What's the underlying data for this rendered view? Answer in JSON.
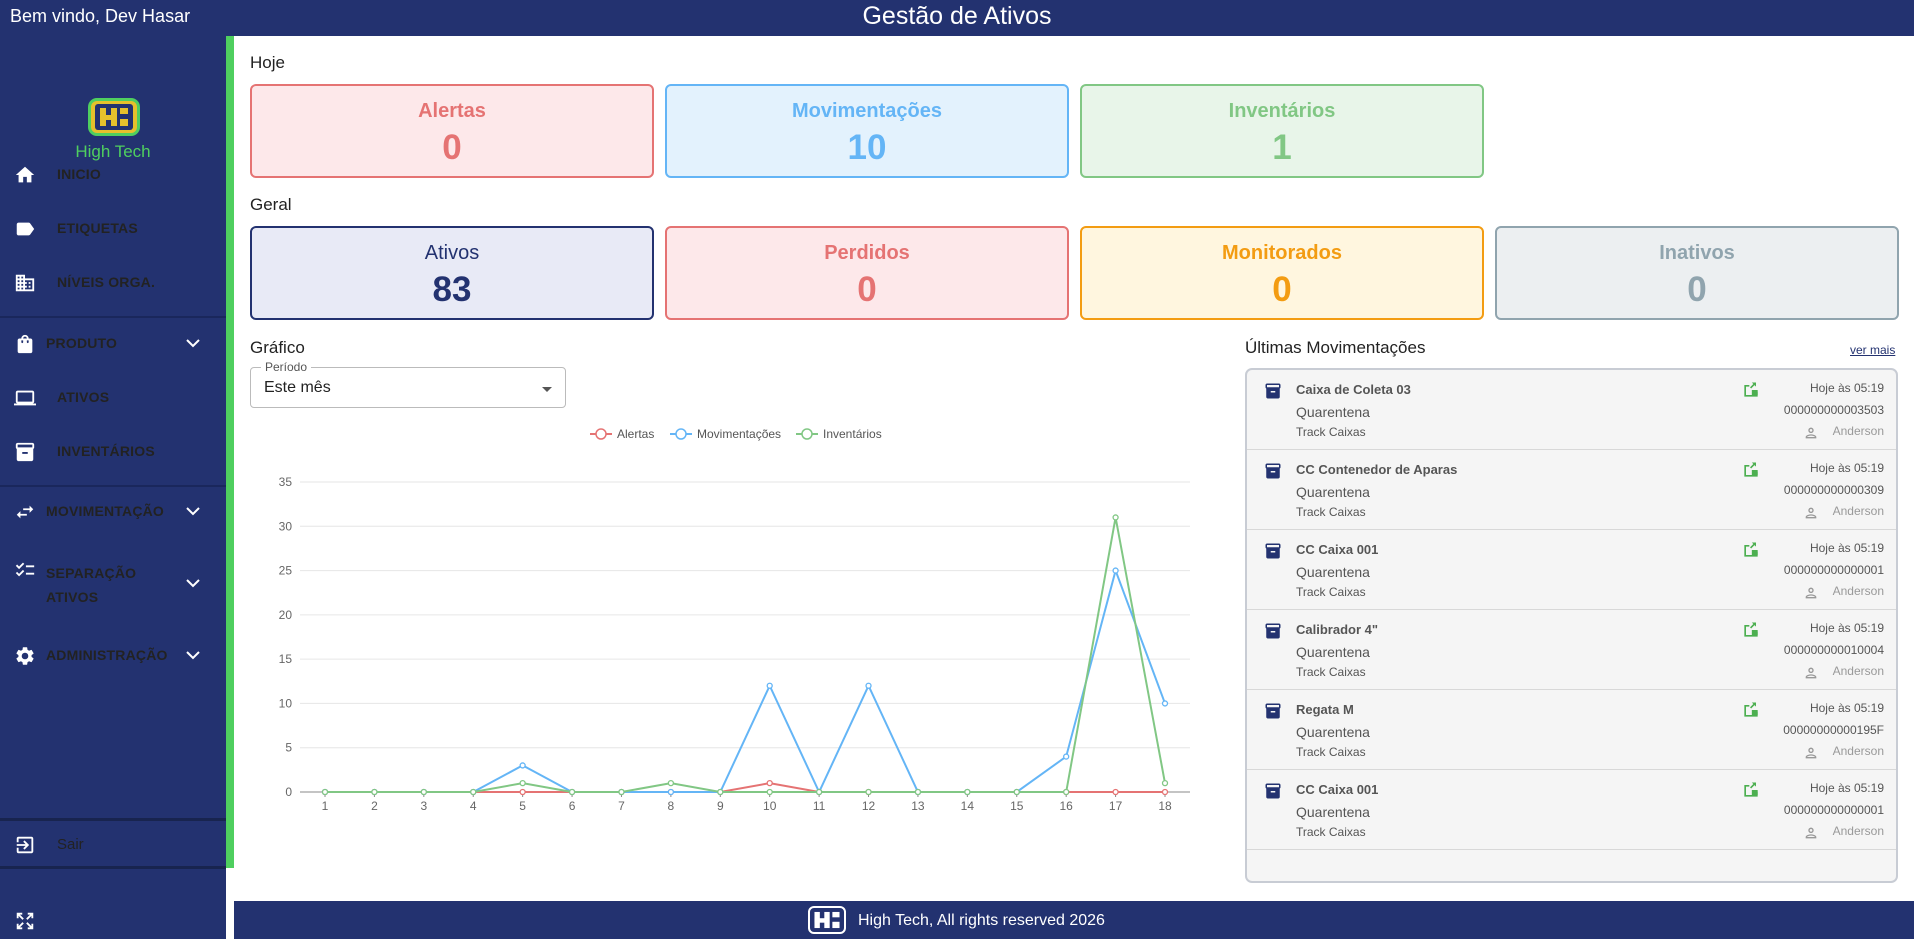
{
  "header": {
    "welcome": "Bem vindo, Dev Hasar",
    "title": "Gestão de Ativos"
  },
  "brand": {
    "name": "High Tech"
  },
  "sidebar": {
    "items": [
      {
        "label": "INICIO",
        "icon": "home-icon"
      },
      {
        "label": "ETIQUETAS",
        "icon": "label-icon"
      },
      {
        "label": "NÍVEIS ORGA.",
        "icon": "building-icon"
      },
      {
        "label": "PRODUTO",
        "icon": "bag-icon"
      },
      {
        "label": "ATIVOS",
        "icon": "laptop-icon"
      },
      {
        "label": "INVENTÁRIOS",
        "icon": "archive-icon"
      },
      {
        "label": "MOVIMENTAÇÃO",
        "icon": "swap-icon"
      },
      {
        "label": "SEPARAÇÃO",
        "label2": "ATIVOS",
        "icon": "checklist-icon"
      },
      {
        "label": "ADMINISTRAÇÃO",
        "icon": "gear-icon"
      }
    ],
    "logout": "Sair"
  },
  "today": {
    "title": "Hoje",
    "cards": [
      {
        "label": "Alertas",
        "value": "0"
      },
      {
        "label": "Movimentações",
        "value": "10"
      },
      {
        "label": "Inventários",
        "value": "1"
      }
    ]
  },
  "general": {
    "title": "Geral",
    "cards": [
      {
        "label": "Ativos",
        "value": "83"
      },
      {
        "label": "Perdidos",
        "value": "0"
      },
      {
        "label": "Monitorados",
        "value": "0"
      },
      {
        "label": "Inativos",
        "value": "0"
      }
    ]
  },
  "graph": {
    "title": "Gráfico",
    "period_label": "Período",
    "period_value": "Este mês"
  },
  "colors": {
    "alert": "#e57373",
    "movement": "#64b5f6",
    "inventory": "#81c784",
    "navy": "#233270",
    "green": "#4fcf5f"
  },
  "chart_data": {
    "type": "line",
    "x": [
      1,
      2,
      3,
      4,
      5,
      6,
      7,
      8,
      9,
      10,
      11,
      12,
      13,
      14,
      15,
      16,
      17,
      18
    ],
    "ylim": [
      0,
      35
    ],
    "yticks": [
      0,
      5,
      10,
      15,
      20,
      25,
      30,
      35
    ],
    "grid": true,
    "legend": "top",
    "series": [
      {
        "name": "Alertas",
        "color": "#e57373",
        "values": [
          0,
          0,
          0,
          0,
          0,
          0,
          0,
          0,
          0,
          1,
          0,
          0,
          0,
          0,
          0,
          0,
          0,
          0
        ]
      },
      {
        "name": "Movimentações",
        "color": "#64b5f6",
        "values": [
          0,
          0,
          0,
          0,
          3,
          0,
          0,
          0,
          0,
          12,
          0,
          12,
          0,
          0,
          0,
          4,
          25,
          10
        ]
      },
      {
        "name": "Inventários",
        "color": "#81c784",
        "values": [
          0,
          0,
          0,
          0,
          1,
          0,
          0,
          1,
          0,
          0,
          0,
          0,
          0,
          0,
          0,
          0,
          31,
          1
        ]
      }
    ]
  },
  "movements": {
    "title": "Últimas Movimentações",
    "see_more": "ver mais",
    "items": [
      {
        "name": "Caixa de Coleta 03",
        "status": "Quarentena",
        "group": "Track Caixas",
        "time": "Hoje às 05:19",
        "code": "000000000003503",
        "user": "Anderson"
      },
      {
        "name": "CC Contenedor de Aparas",
        "status": "Quarentena",
        "group": "Track Caixas",
        "time": "Hoje às 05:19",
        "code": "000000000000309",
        "user": "Anderson"
      },
      {
        "name": "CC Caixa 001",
        "status": "Quarentena",
        "group": "Track Caixas",
        "time": "Hoje às 05:19",
        "code": "000000000000001",
        "user": "Anderson"
      },
      {
        "name": "Calibrador 4\"",
        "status": "Quarentena",
        "group": "Track Caixas",
        "time": "Hoje às 05:19",
        "code": "000000000010004",
        "user": "Anderson"
      },
      {
        "name": "Regata M",
        "status": "Quarentena",
        "group": "Track Caixas",
        "time": "Hoje às 05:19",
        "code": "00000000000195F",
        "user": "Anderson"
      },
      {
        "name": "CC Caixa 001",
        "status": "Quarentena",
        "group": "Track Caixas",
        "time": "Hoje às 05:19",
        "code": "000000000000001",
        "user": "Anderson"
      }
    ]
  },
  "footer": {
    "text": "High Tech, All rights reserved 2026"
  }
}
